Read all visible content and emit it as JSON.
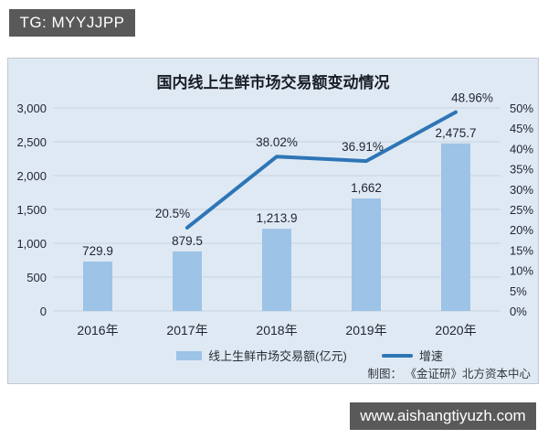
{
  "badges": {
    "tg": "TG: MYYJJPP",
    "site": "www.aishangtiyuzh.com"
  },
  "chart_data": {
    "type": "bar+line combo",
    "title": "国内线上生鲜市场交易额变动情况",
    "categories": [
      "2016年",
      "2017年",
      "2018年",
      "2019年",
      "2020年"
    ],
    "series": [
      {
        "name": "线上生鲜市场交易额(亿元)",
        "type": "bar",
        "axis": "left",
        "values": [
          729.9,
          879.5,
          1213.9,
          1662,
          2475.7
        ],
        "labels": [
          "729.9",
          "879.5",
          "1,213.9",
          "1,662",
          "2,475.7"
        ],
        "color": "#9dc3e6"
      },
      {
        "name": "增速",
        "type": "line",
        "axis": "right",
        "values": [
          null,
          20.5,
          38.02,
          36.91,
          48.96
        ],
        "labels": [
          "20.5%",
          "38.02%",
          "36.91%",
          "48.96%"
        ],
        "color": "#2e75b6"
      }
    ],
    "left_axis": {
      "min": 0,
      "max": 3000,
      "step": 500,
      "ticks": [
        "0",
        "500",
        "1,000",
        "1,500",
        "2,000",
        "2,500",
        "3,000"
      ]
    },
    "right_axis": {
      "min": 0,
      "max": 50,
      "step": 5,
      "ticks": [
        "0%",
        "5%",
        "10%",
        "15%",
        "20%",
        "25%",
        "30%",
        "35%",
        "40%",
        "45%",
        "50%"
      ]
    },
    "grid": true,
    "legend_position": "bottom"
  },
  "attribution": "制图： 《金证研》北方资本中心",
  "colors": {
    "panel_bg": "#dfe9f4",
    "badge_bg": "#595959",
    "bar": "#9dc3e6",
    "line": "#2e75b6",
    "grid": "#c6d2e0",
    "text": "#1f2430"
  }
}
